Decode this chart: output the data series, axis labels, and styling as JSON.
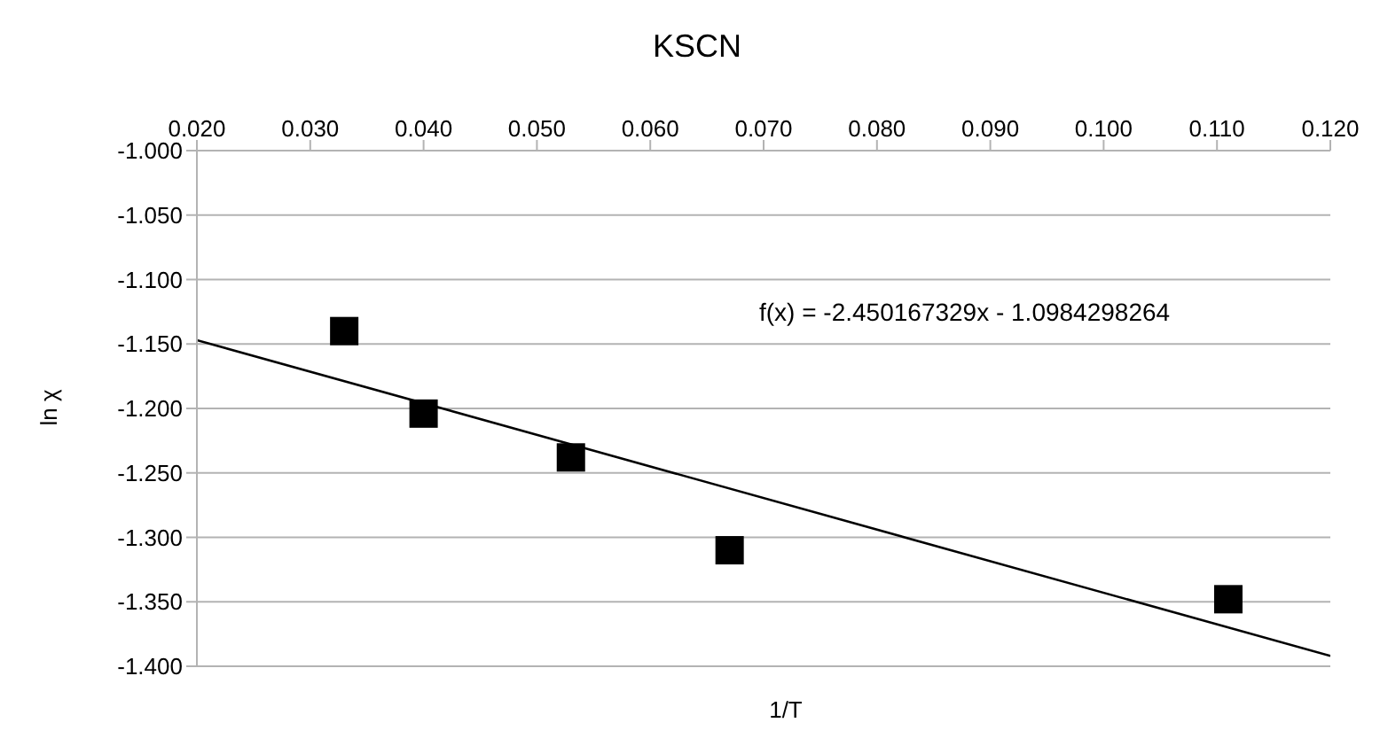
{
  "chart_data": {
    "type": "scatter",
    "title": "KSCN",
    "xlabel": "1/T",
    "ylabel": "ln χ",
    "xlim": [
      0.02,
      0.12
    ],
    "xticks": [
      {
        "value": 0.02,
        "label": "0.020"
      },
      {
        "value": 0.03,
        "label": "0.030"
      },
      {
        "value": 0.04,
        "label": "0.040"
      },
      {
        "value": 0.05,
        "label": "0.050"
      },
      {
        "value": 0.06,
        "label": "0.060"
      },
      {
        "value": 0.07,
        "label": "0.070"
      },
      {
        "value": 0.08,
        "label": "0.080"
      },
      {
        "value": 0.09,
        "label": "0.090"
      },
      {
        "value": 0.1,
        "label": "0.100"
      },
      {
        "value": 0.11,
        "label": "0.110"
      },
      {
        "value": 0.12,
        "label": "0.120"
      }
    ],
    "ylim": [
      -1.4,
      -1.0
    ],
    "yticks": [
      {
        "value": -1.0,
        "label": "-1.000"
      },
      {
        "value": -1.05,
        "label": "-1.050"
      },
      {
        "value": -1.1,
        "label": "-1.100"
      },
      {
        "value": -1.15,
        "label": "-1.150"
      },
      {
        "value": -1.2,
        "label": "-1.200"
      },
      {
        "value": -1.25,
        "label": "-1.250"
      },
      {
        "value": -1.3,
        "label": "-1.300"
      },
      {
        "value": -1.35,
        "label": "-1.350"
      },
      {
        "value": -1.4,
        "label": "-1.400"
      }
    ],
    "grid": "y",
    "legend": false,
    "annotations": [
      "f(x) = -2.450167329x - 1.0984298264"
    ],
    "series": [
      {
        "color": "#000000",
        "marker": "square",
        "x": [
          0.033,
          0.04,
          0.053,
          0.067,
          0.111
        ],
        "values": [
          -1.14,
          -1.204,
          -1.238,
          -1.31,
          -1.348
        ]
      },
      {
        "type": "line",
        "color": "#000000",
        "marker": "none",
        "line_style": "solid",
        "x": [
          0.02,
          0.12
        ],
        "values": [
          -1.147,
          -1.392
        ]
      }
    ]
  }
}
